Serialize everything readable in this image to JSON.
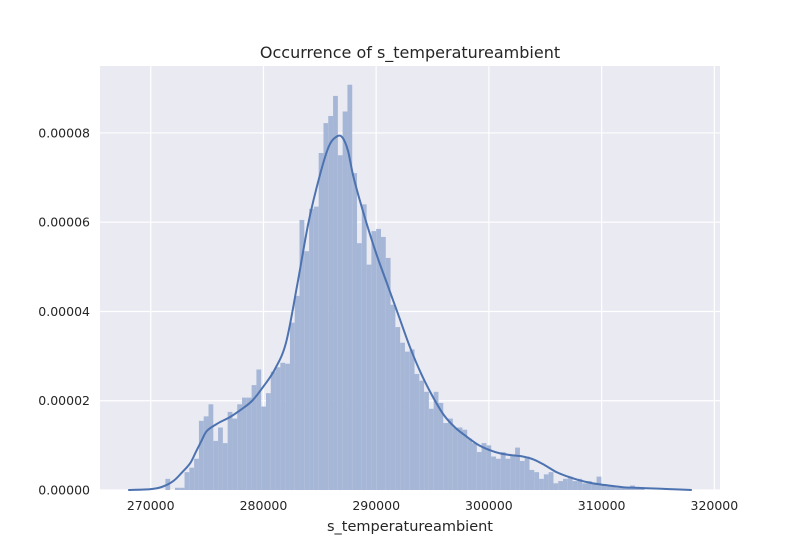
{
  "chart_data": {
    "type": "bar",
    "subtype": "histogram-with-kde",
    "title": "Occurrence of s_temperatureambient",
    "xlabel": "s_temperatureambient",
    "ylabel": "",
    "xlim": [
      265500,
      320500
    ],
    "ylim": [
      0,
      9.5e-05
    ],
    "xticks": [
      270000,
      280000,
      290000,
      300000,
      310000,
      320000
    ],
    "xtick_labels": [
      "270000",
      "280000",
      "290000",
      "300000",
      "310000",
      "320000"
    ],
    "yticks": [
      0,
      2e-05,
      4e-05,
      6e-05,
      8e-05
    ],
    "ytick_labels": [
      "0.00000",
      "0.00002",
      "0.00004",
      "0.00006",
      "0.00008"
    ],
    "grid": true,
    "colors": {
      "background": "#eaeaf2",
      "grid": "#ffffff",
      "bars": "#a5b6d6",
      "kde": "#4c72b0"
    },
    "bins": {
      "start": 271300,
      "width": 425,
      "density": [
        2.5e-06,
        0.0,
        5e-07,
        5e-07,
        4e-06,
        5e-06,
        7e-06,
        1.55e-05,
        1.65e-05,
        1.92e-05,
        1.1e-05,
        1.4e-05,
        1.05e-05,
        1.75e-05,
        1.6e-05,
        1.92e-05,
        2.07e-05,
        2.07e-05,
        2.35e-05,
        2.7e-05,
        1.87e-05,
        2.17e-05,
        2.65e-05,
        2.75e-05,
        2.85e-05,
        2.83e-05,
        3.75e-05,
        4.35e-05,
        6.05e-05,
        5.35e-05,
        6.3e-05,
        6.35e-05,
        7.55e-05,
        8.22e-05,
        8.38e-05,
        8.83e-05,
        7.5e-05,
        8.48e-05,
        9.08e-05,
        7.1e-05,
        5.53e-05,
        6.4e-05,
        5.05e-05,
        5.8e-05,
        5.85e-05,
        5.67e-05,
        5.2e-05,
        4.15e-05,
        3.65e-05,
        3.3e-05,
        3.1e-05,
        3.15e-05,
        2.6e-05,
        2.45e-05,
        2.2e-05,
        1.82e-05,
        2.2e-05,
        1.95e-05,
        1.5e-05,
        1.6e-05,
        1.4e-05,
        1.4e-05,
        1.35e-05,
        1.15e-05,
        1.05e-05,
        8.5e-06,
        1.05e-05,
        1e-05,
        7.5e-06,
        7e-06,
        8.5e-06,
        7e-06,
        8e-06,
        9.5e-06,
        6.5e-06,
        7.5e-06,
        4.5e-06,
        4e-06,
        2.5e-06,
        3.5e-06,
        4e-06,
        1.5e-06,
        2e-06,
        2.5e-06,
        3e-06,
        2e-06,
        2.5e-06,
        1.5e-06,
        2e-06,
        1.5e-06,
        3e-06,
        1e-06,
        1e-06,
        1e-06,
        5e-07,
        5e-07,
        5e-07,
        1e-06,
        5e-07,
        5e-07
      ]
    },
    "kde": {
      "x": [
        268000,
        270000,
        271000,
        272000,
        272800,
        273500,
        274000,
        274500,
        275000,
        276000,
        277000,
        278000,
        279000,
        280000,
        281000,
        282000,
        283000,
        284000,
        285000,
        285800,
        286500,
        287000,
        287500,
        288000,
        289000,
        290000,
        291000,
        292000,
        293000,
        294000,
        295000,
        296000,
        297000,
        298000,
        299000,
        300000,
        301000,
        302000,
        303000,
        304000,
        305000,
        306000,
        307000,
        308000,
        309000,
        310000,
        311000,
        312000,
        313000,
        314000,
        315000,
        316000,
        318000
      ],
      "y": [
        0.0,
        2e-07,
        7e-07,
        2e-06,
        4e-06,
        6e-06,
        8.5e-06,
        1.1e-05,
        1.33e-05,
        1.5e-05,
        1.63e-05,
        1.8e-05,
        2e-05,
        2.32e-05,
        2.7e-05,
        3.3e-05,
        4.6e-05,
        6e-05,
        7.05e-05,
        7.7e-05,
        7.92e-05,
        7.9e-05,
        7.6e-05,
        7e-05,
        6.1e-05,
        5.3e-05,
        4.6e-05,
        3.9e-05,
        3.2e-05,
        2.6e-05,
        2.1e-05,
        1.68e-05,
        1.4e-05,
        1.2e-05,
        1.02e-05,
        9e-06,
        8.2e-06,
        7.8e-06,
        7.5e-06,
        6.8e-06,
        5.5e-06,
        4e-06,
        3e-06,
        2.2e-06,
        1.6e-06,
        1.2e-06,
        9e-07,
        6e-07,
        5e-07,
        4e-07,
        3e-07,
        2e-07,
        0.0
      ]
    }
  }
}
